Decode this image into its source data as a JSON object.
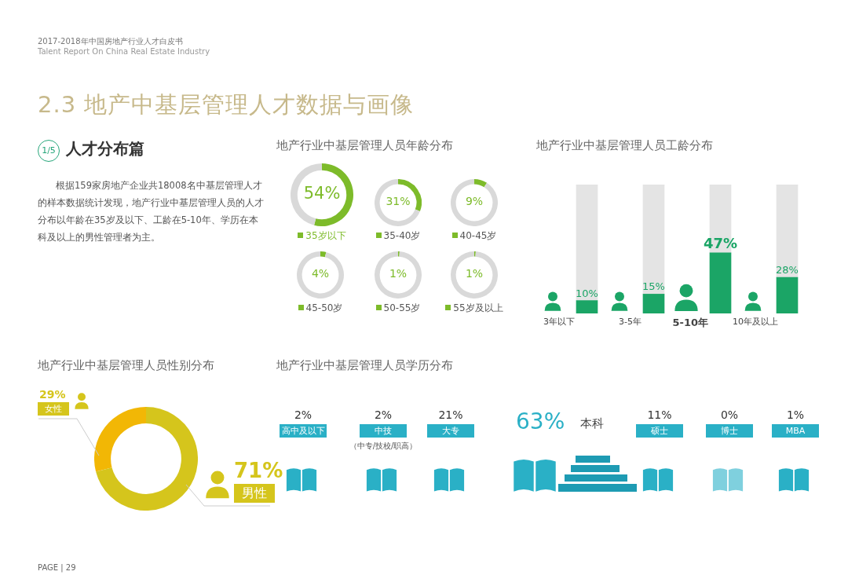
{
  "chart_data": [
    {
      "type": "other",
      "title": "2.3 地产中基层管理人才数据与画像",
      "subtitle": "人才分布篇",
      "annotations": [
        "2017-2018年中国房地产行业人才白皮书",
        "Talent Report On China Real Estate Industry",
        "1/5",
        "根据159家房地产企业共18008名中基层管理人才的样本数据统计发现，地产行业中基层管理人员的人才分布以年龄在35岁及以下、工龄在5-10年、学历在本科及以上的男性管理者为主。",
        "PAGE | 29"
      ]
    },
    {
      "type": "donut",
      "title": "地产行业中基层管理人员年龄分布",
      "categories": [
        "35岁以下",
        null
      ],
      "values": [
        54,
        46
      ],
      "colors": [
        "#7dbb2a",
        "#d9d9d9"
      ],
      "value_labels": [
        "54%",
        null
      ]
    },
    {
      "type": "donut",
      "categories": [
        "35-40岁",
        null
      ],
      "values": [
        31,
        69
      ],
      "colors": [
        "#7dbb2a",
        "#d9d9d9"
      ],
      "value_labels": [
        "31%",
        null
      ]
    },
    {
      "type": "donut",
      "categories": [
        "40-45岁",
        null
      ],
      "values": [
        9,
        91
      ],
      "colors": [
        "#7dbb2a",
        "#d9d9d9"
      ],
      "value_labels": [
        "9%",
        null
      ]
    },
    {
      "type": "donut",
      "categories": [
        "45-50岁",
        null
      ],
      "values": [
        4,
        96
      ],
      "colors": [
        "#7dbb2a",
        "#d9d9d9"
      ],
      "value_labels": [
        "4%",
        null
      ]
    },
    {
      "type": "donut",
      "categories": [
        "50-55岁",
        null
      ],
      "values": [
        1,
        99
      ],
      "colors": [
        "#7dbb2a",
        "#d9d9d9"
      ],
      "value_labels": [
        "1%",
        null
      ]
    },
    {
      "type": "donut",
      "categories": [
        "55岁及以上",
        null
      ],
      "values": [
        1,
        99
      ],
      "colors": [
        "#7dbb2a",
        "#d9d9d9"
      ],
      "value_labels": [
        "1%",
        null
      ]
    },
    {
      "type": "bar",
      "title": "地产行业中基层管理人员工龄分布",
      "categories": [
        "3年以下",
        "3-5年",
        "5-10年",
        "10年及以上"
      ],
      "stacked": true,
      "tick_labels": false,
      "series": [
        {
          "color": "#1ba566",
          "values": [
            10,
            15,
            47,
            28
          ],
          "value_labels": [
            "10%",
            "15%",
            "47%",
            "28%"
          ]
        },
        {
          "color": "#e4e4e4",
          "values": [
            90,
            85,
            53,
            72
          ]
        }
      ]
    },
    {
      "type": "donut",
      "title": "地产行业中基层管理人员性别分布",
      "categories": [
        "女性",
        "男性"
      ],
      "values": [
        29,
        71
      ],
      "colors": [
        "#f2b705",
        "#d5c51c"
      ],
      "value_labels": [
        "29%",
        "71%"
      ]
    },
    {
      "type": "other",
      "title": "地产行业中基层管理人员学历分布",
      "categories": [
        "高中及以下",
        "中技",
        "大专",
        "本科",
        "硕士",
        "博士",
        "MBA"
      ],
      "values": [
        2,
        2,
        21,
        63,
        11,
        0,
        1
      ],
      "value_labels": [
        "2%",
        "2%",
        "21%",
        "63%",
        "11%",
        "0%",
        "1%"
      ],
      "color": "#2ab0c6",
      "annotations": [
        "（中专/技校/职高）"
      ]
    }
  ]
}
